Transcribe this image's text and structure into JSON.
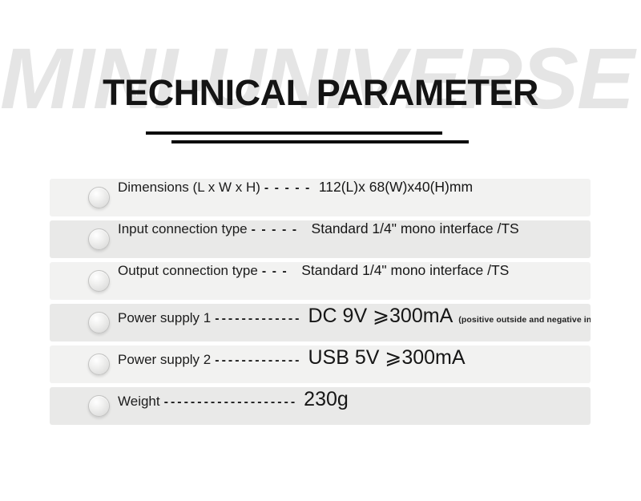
{
  "watermark": "MINI-UNIVERSE",
  "header": {
    "title": "TECHNICAL PARAMETER"
  },
  "specs": [
    {
      "label": "Dimensions (L x W x H)",
      "dashes": "- - - - -",
      "value": "112(L)x 68(W)x40(H)mm"
    },
    {
      "label": "Input connection type",
      "dashes": "- - - - -",
      "value": "Standard 1/4\" mono interface /TS"
    },
    {
      "label": "Output connection type",
      "dashes": "- - -",
      "value": "Standard 1/4\" mono interface /TS"
    },
    {
      "label": "Power supply 1",
      "dashes": "-------------",
      "value": "DC 9V ⩾300mA",
      "note": "(positive outside and negative inside)"
    },
    {
      "label": "Power supply 2",
      "dashes": "-------------",
      "value": "USB 5V ⩾300mA"
    },
    {
      "label": "Weight",
      "dashes": "--------------------",
      "value": "230g"
    }
  ],
  "colors": {
    "row_light": "#f2f2f1",
    "row_dark": "#e9e9e8",
    "watermark_gray": "#e5e5e5",
    "title_black": "#141414",
    "rule_black": "#0c0c0c"
  }
}
